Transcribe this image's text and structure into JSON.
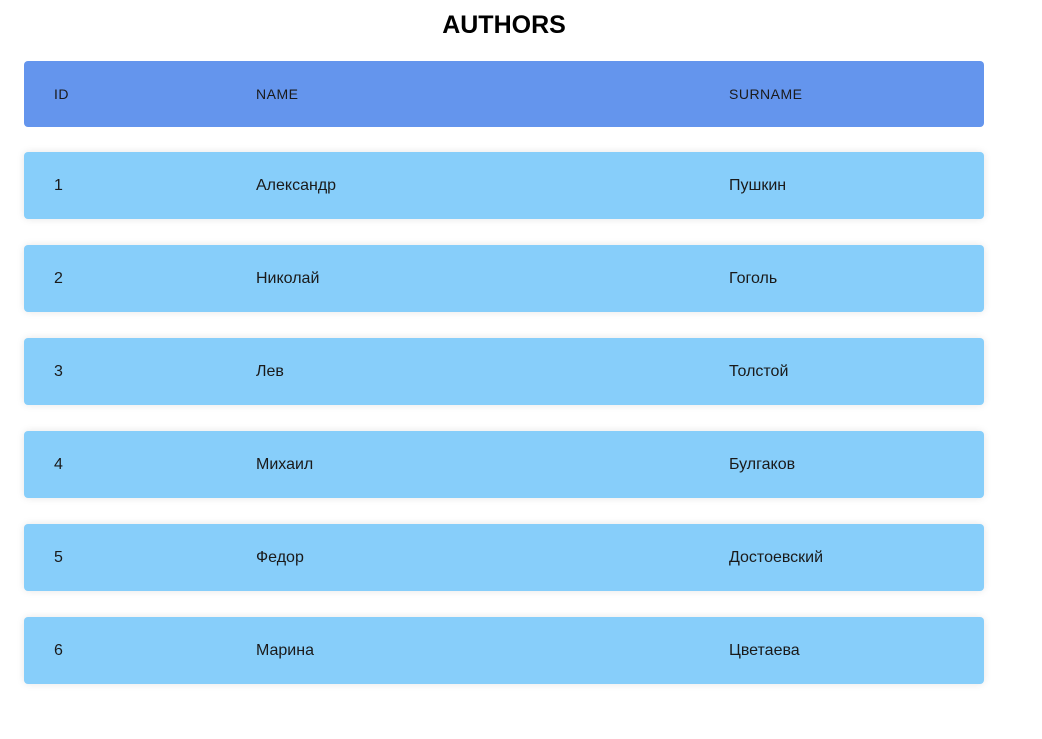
{
  "page": {
    "title": "AUTHORS"
  },
  "colors": {
    "header_background": "#6495ED",
    "row_background": "#87CEFA",
    "page_background": "#FFFFFF"
  },
  "table": {
    "columns": [
      "ID",
      "NAME",
      "SURNAME"
    ],
    "rows": [
      {
        "id": "1",
        "name": "Александр",
        "surname": "Пушкин"
      },
      {
        "id": "2",
        "name": "Николай",
        "surname": "Гоголь"
      },
      {
        "id": "3",
        "name": "Лев",
        "surname": "Толстой"
      },
      {
        "id": "4",
        "name": "Михаил",
        "surname": "Булгаков"
      },
      {
        "id": "5",
        "name": "Федор",
        "surname": "Достоевский"
      },
      {
        "id": "6",
        "name": "Марина",
        "surname": "Цветаева"
      }
    ]
  }
}
